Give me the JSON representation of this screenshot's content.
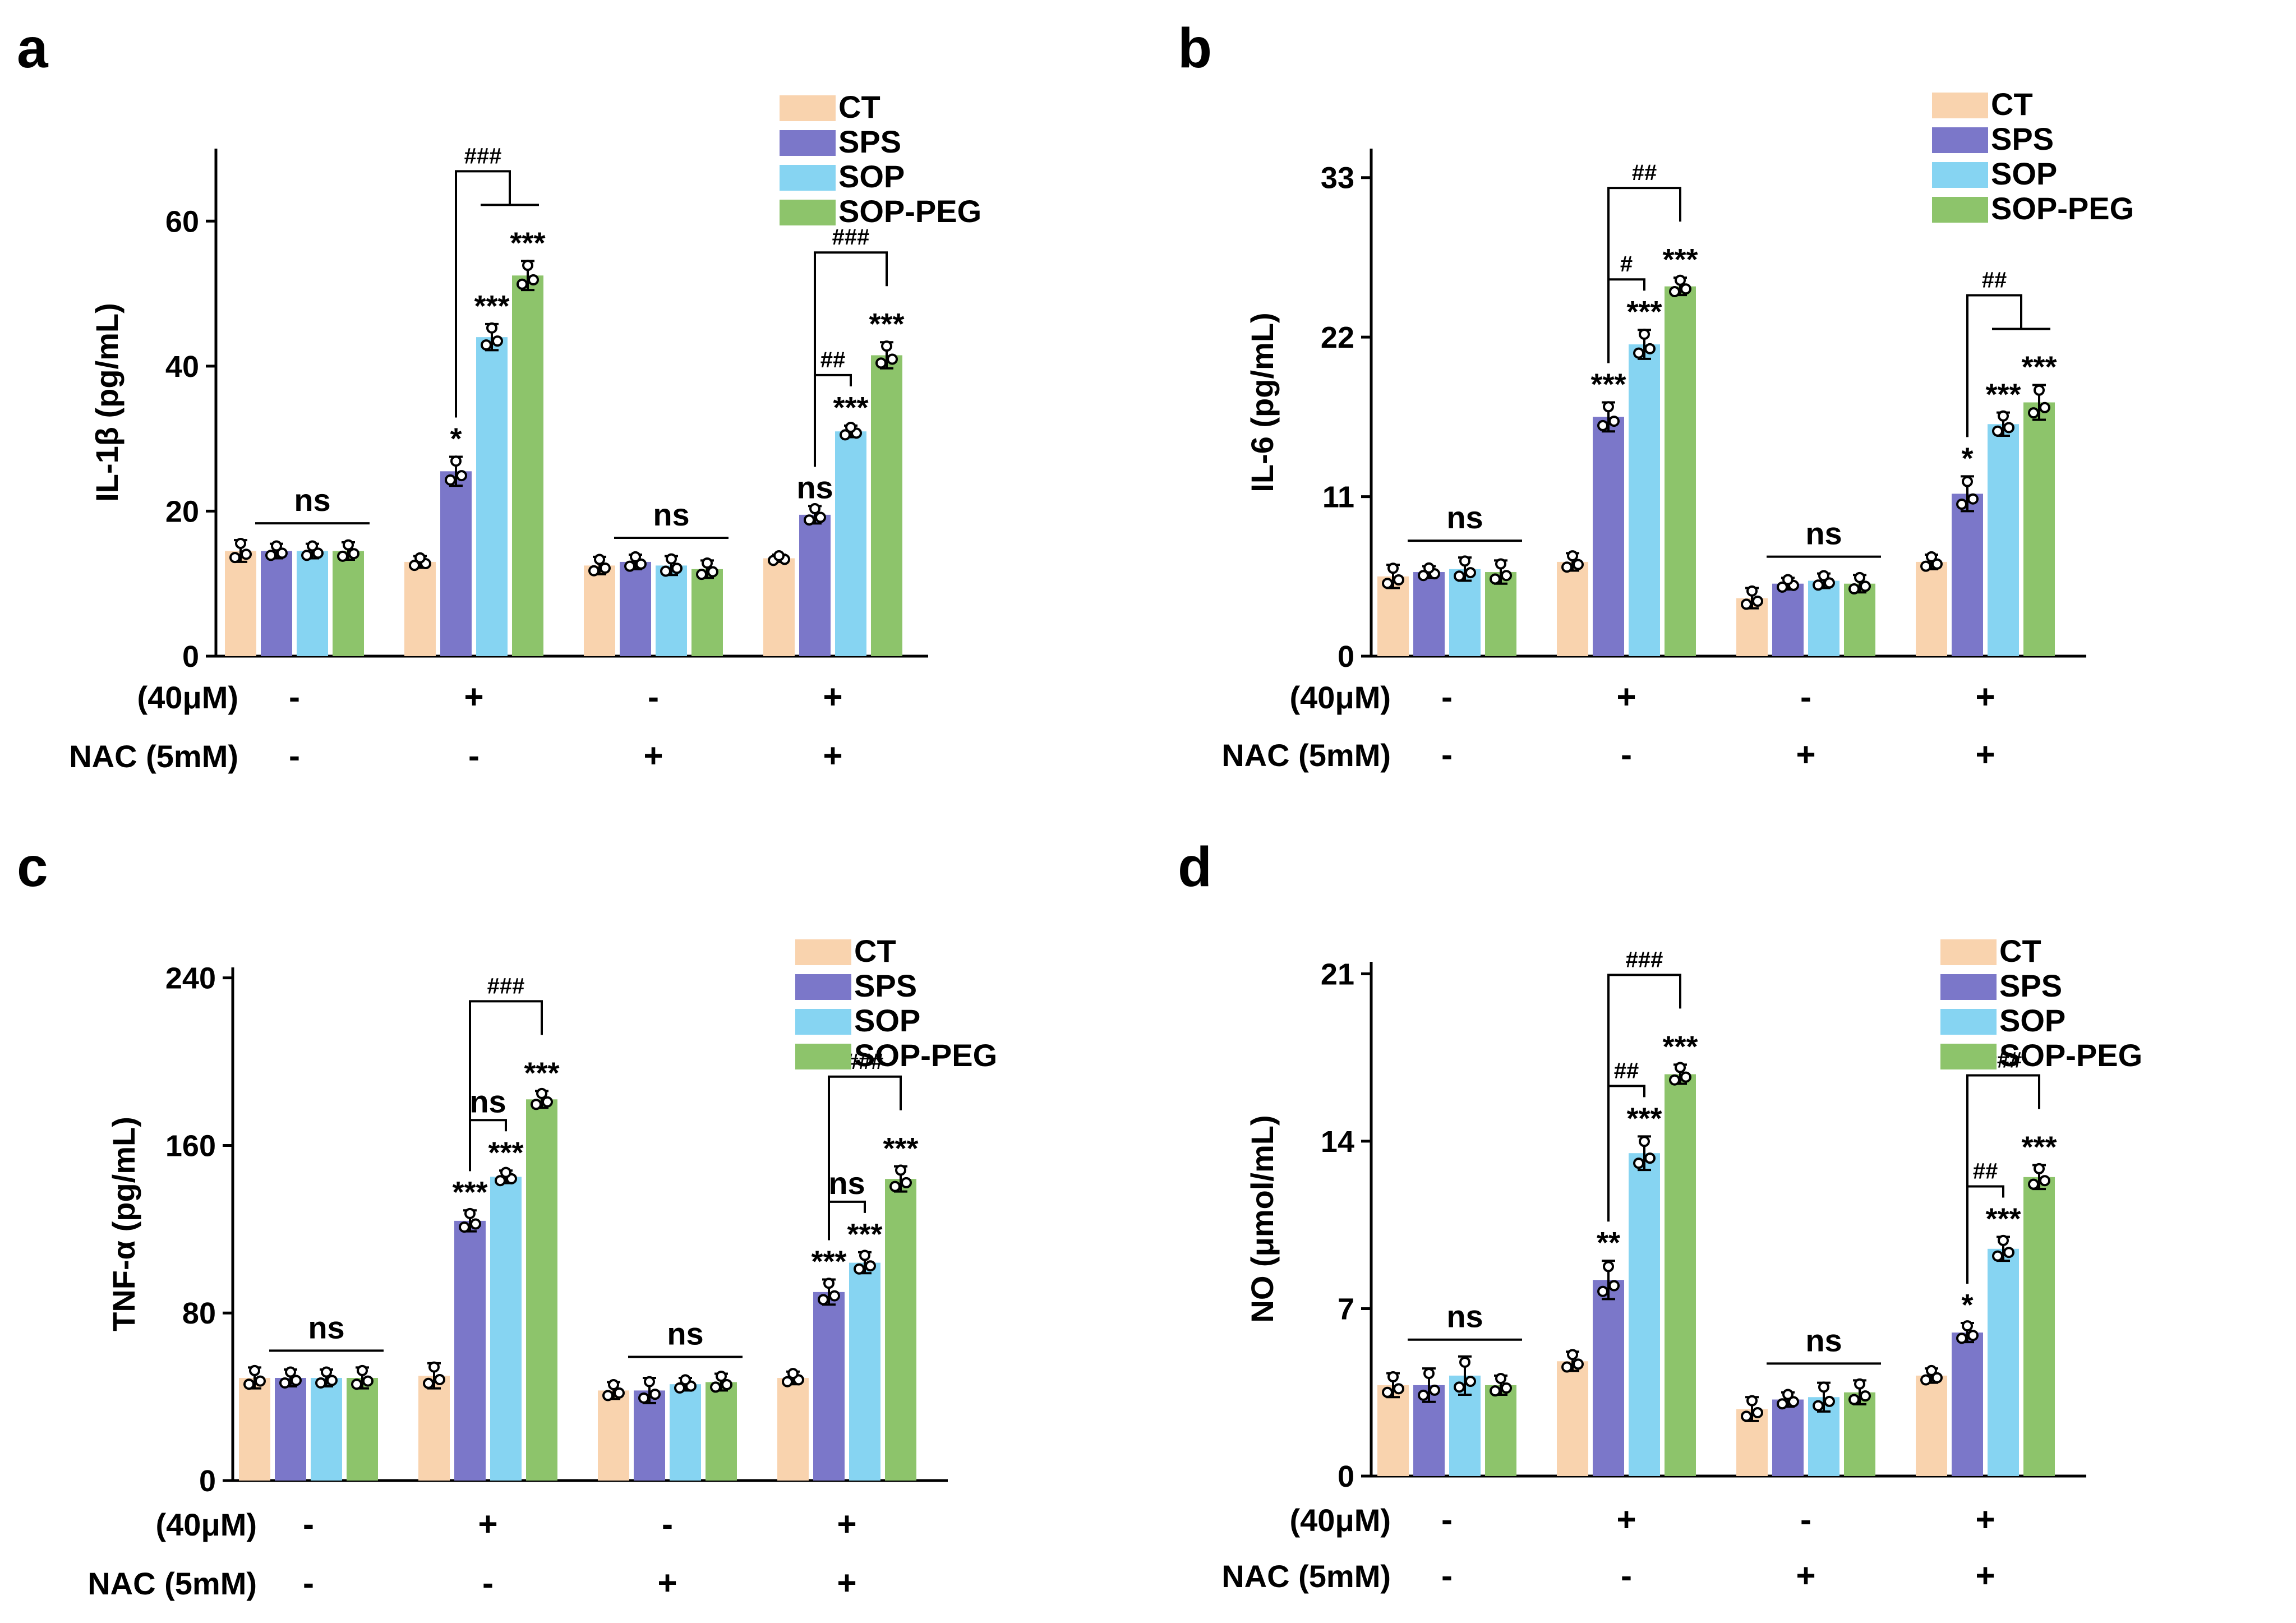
{
  "colors": {
    "CT": "#f9d3ae",
    "SPS": "#7b77c9",
    "SOP": "#86d4f2",
    "SOP-PEG": "#8dc46b"
  },
  "legend": [
    "CT",
    "SPS",
    "SOP",
    "SOP-PEG"
  ],
  "condition_rows": [
    {
      "label": "(40μM)",
      "marks": [
        "-",
        "+",
        "-",
        "+"
      ]
    },
    {
      "label": "NAC (5mM)",
      "marks": [
        "-",
        "-",
        "+",
        "+"
      ]
    }
  ],
  "chart_data": [
    {
      "panel": "a",
      "type": "bar",
      "ylabel": "IL-1β (pg/mL)",
      "ylim": [
        0,
        70
      ],
      "yticks": [
        0,
        20,
        40,
        60
      ],
      "series": [
        {
          "name": "CT",
          "values": [
            14.5,
            13,
            12.5,
            13.5
          ],
          "errors": [
            1.5,
            0.8,
            1.2,
            0.5
          ]
        },
        {
          "name": "SPS",
          "values": [
            14.5,
            25.5,
            13,
            19.5
          ],
          "errors": [
            1.0,
            2.0,
            1.0,
            1.2
          ]
        },
        {
          "name": "SOP",
          "values": [
            14.5,
            44,
            12.5,
            31
          ],
          "errors": [
            1.0,
            1.8,
            1.3,
            0.8
          ]
        },
        {
          "name": "SOP-PEG",
          "values": [
            14.5,
            52.5,
            12,
            41.5
          ],
          "errors": [
            1.2,
            2.0,
            1.2,
            1.8
          ]
        }
      ],
      "stars": [
        [
          null,
          null,
          null,
          null
        ],
        [
          null,
          "*",
          "***",
          "***"
        ],
        [
          null,
          null,
          null,
          null
        ],
        [
          null,
          "ns",
          "***",
          "***"
        ]
      ],
      "group_ns": [
        {
          "group": 0,
          "label": "ns"
        },
        {
          "group": 2,
          "label": "ns"
        }
      ],
      "brackets": [
        {
          "group": 1,
          "from": 1,
          "to": 3,
          "label": "###",
          "join": [
            2,
            3
          ]
        },
        {
          "group": 3,
          "from": 1,
          "to": 2,
          "label": "##"
        },
        {
          "group": 3,
          "from": 1,
          "to": 3,
          "label": "###"
        }
      ]
    },
    {
      "panel": "b",
      "type": "bar",
      "ylabel": "IL-6 (pg/mL)",
      "ylim": [
        0,
        35
      ],
      "yticks": [
        0,
        11,
        22,
        33
      ],
      "series": [
        {
          "name": "CT",
          "values": [
            5.5,
            6.5,
            4,
            6.5
          ],
          "errors": [
            0.8,
            0.6,
            0.7,
            0.5
          ]
        },
        {
          "name": "SPS",
          "values": [
            5.8,
            16.5,
            5,
            11.2
          ],
          "errors": [
            0.4,
            1.0,
            0.4,
            1.2
          ]
        },
        {
          "name": "SOP",
          "values": [
            6,
            21.5,
            5.2,
            16
          ],
          "errors": [
            0.8,
            1.0,
            0.5,
            0.8
          ]
        },
        {
          "name": "SOP-PEG",
          "values": [
            5.8,
            25.5,
            5,
            17.5
          ],
          "errors": [
            0.8,
            0.6,
            0.6,
            1.2
          ]
        }
      ],
      "stars": [
        [
          null,
          null,
          null,
          null
        ],
        [
          null,
          "***",
          "***",
          "***"
        ],
        [
          null,
          null,
          null,
          null
        ],
        [
          null,
          "*",
          "***",
          "***"
        ]
      ],
      "group_ns": [
        {
          "group": 0,
          "label": "ns"
        },
        {
          "group": 2,
          "label": "ns"
        }
      ],
      "brackets": [
        {
          "group": 1,
          "from": 1,
          "to": 2,
          "label": "#"
        },
        {
          "group": 1,
          "from": 1,
          "to": 3,
          "label": "##"
        },
        {
          "group": 3,
          "from": 1,
          "to": 3,
          "label": "##",
          "join": [
            2,
            3
          ]
        }
      ]
    },
    {
      "panel": "c",
      "type": "bar",
      "ylabel": "TNF-α (pg/mL)",
      "ylim": [
        0,
        245
      ],
      "yticks": [
        0,
        80,
        160,
        240
      ],
      "series": [
        {
          "name": "CT",
          "values": [
            49,
            50,
            43,
            49
          ],
          "errors": [
            5,
            6,
            4,
            3
          ]
        },
        {
          "name": "SPS",
          "values": [
            49,
            124,
            43,
            90
          ],
          "errors": [
            4,
            5,
            6,
            6
          ]
        },
        {
          "name": "SOP",
          "values": [
            49,
            145,
            46,
            104
          ],
          "errors": [
            4,
            3,
            3,
            5
          ]
        },
        {
          "name": "SOP-PEG",
          "values": [
            49,
            182,
            47,
            144
          ],
          "errors": [
            5,
            4,
            4,
            6
          ]
        }
      ],
      "stars": [
        [
          null,
          null,
          null,
          null
        ],
        [
          null,
          "***",
          "***",
          "***"
        ],
        [
          null,
          null,
          null,
          null
        ],
        [
          null,
          "***",
          "***",
          "***"
        ]
      ],
      "group_ns": [
        {
          "group": 0,
          "label": "ns"
        },
        {
          "group": 2,
          "label": "ns"
        }
      ],
      "brackets": [
        {
          "group": 1,
          "from": 1,
          "to": 2,
          "label": "ns"
        },
        {
          "group": 1,
          "from": 1,
          "to": 3,
          "label": "###"
        },
        {
          "group": 3,
          "from": 1,
          "to": 2,
          "label": "ns"
        },
        {
          "group": 3,
          "from": 1,
          "to": 3,
          "label": "###"
        }
      ]
    },
    {
      "panel": "d",
      "type": "bar",
      "ylabel": "NO (μmol/mL)",
      "ylim": [
        0,
        21.5
      ],
      "yticks": [
        0,
        7,
        14,
        21
      ],
      "series": [
        {
          "name": "CT",
          "values": [
            3.8,
            4.8,
            2.8,
            4.2
          ],
          "errors": [
            0.5,
            0.4,
            0.5,
            0.3
          ]
        },
        {
          "name": "SPS",
          "values": [
            3.8,
            8.2,
            3.2,
            6
          ],
          "errors": [
            0.7,
            0.8,
            0.3,
            0.4
          ]
        },
        {
          "name": "SOP",
          "values": [
            4.2,
            13.5,
            3.3,
            9.5
          ],
          "errors": [
            0.8,
            0.7,
            0.6,
            0.5
          ]
        },
        {
          "name": "SOP-PEG",
          "values": [
            3.8,
            16.8,
            3.5,
            12.5
          ],
          "errors": [
            0.4,
            0.4,
            0.5,
            0.5
          ]
        }
      ],
      "stars": [
        [
          null,
          null,
          null,
          null
        ],
        [
          null,
          "**",
          "***",
          "***"
        ],
        [
          null,
          null,
          null,
          null
        ],
        [
          null,
          "*",
          "***",
          "***"
        ]
      ],
      "group_ns": [
        {
          "group": 0,
          "label": "ns"
        },
        {
          "group": 2,
          "label": "ns"
        }
      ],
      "brackets": [
        {
          "group": 1,
          "from": 1,
          "to": 2,
          "label": "##"
        },
        {
          "group": 1,
          "from": 1,
          "to": 3,
          "label": "###"
        },
        {
          "group": 3,
          "from": 1,
          "to": 2,
          "label": "##"
        },
        {
          "group": 3,
          "from": 1,
          "to": 3,
          "label": "###"
        }
      ]
    }
  ]
}
